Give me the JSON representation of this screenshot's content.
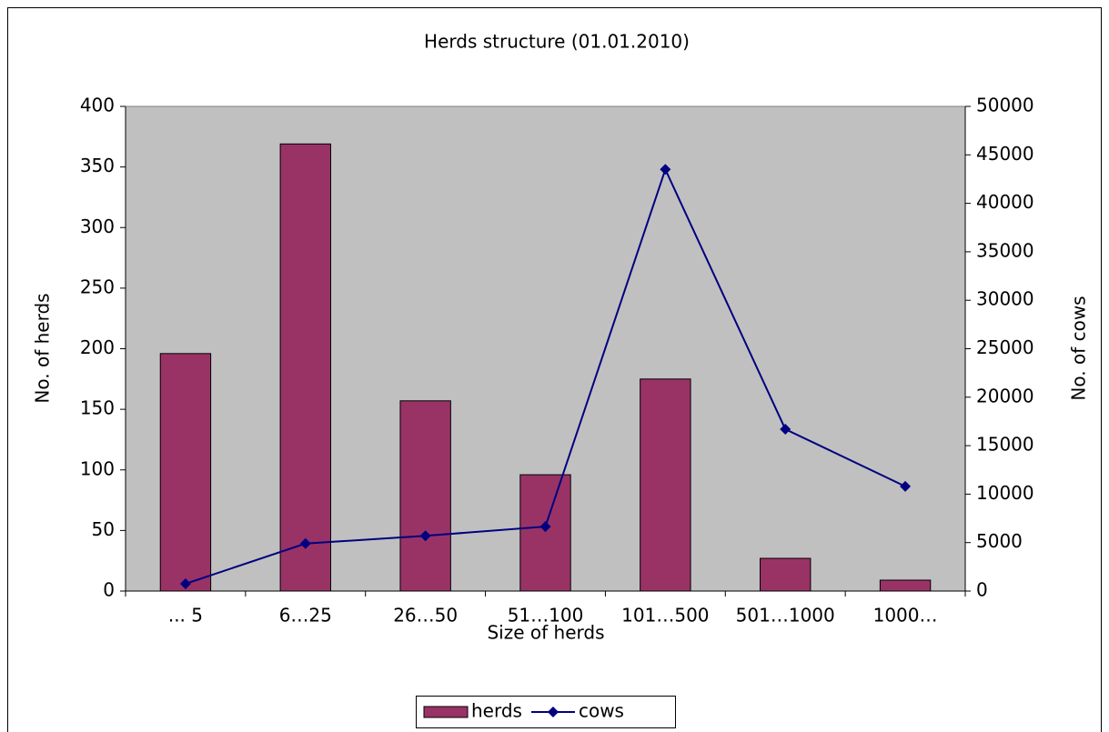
{
  "chart_data": {
    "type": "bar_line",
    "title": "Herds structure (01.01.2010)",
    "xlabel": "Size of herds",
    "ylabel": "No. of herds",
    "y2label": "No. of cows",
    "categories": [
      "... 5",
      "6…25",
      "26…50",
      "51…100",
      "101…500",
      "501…1000",
      "1000…"
    ],
    "series": [
      {
        "name": "herds",
        "type": "bar",
        "color": "#993366",
        "axis": "y",
        "values": [
          196,
          369,
          157,
          96,
          175,
          27,
          9
        ]
      },
      {
        "name": "cows",
        "type": "line",
        "color": "#000080",
        "axis": "y2",
        "values": [
          750,
          4900,
          5700,
          6650,
          43500,
          16700,
          10800
        ]
      }
    ],
    "ylim": [
      0,
      400
    ],
    "yticks": [
      0,
      50,
      100,
      150,
      200,
      250,
      300,
      350,
      400
    ],
    "y2lim": [
      0,
      50000
    ],
    "y2ticks": [
      0,
      5000,
      10000,
      15000,
      20000,
      25000,
      30000,
      35000,
      40000,
      45000,
      50000
    ],
    "legend": "bottom"
  }
}
